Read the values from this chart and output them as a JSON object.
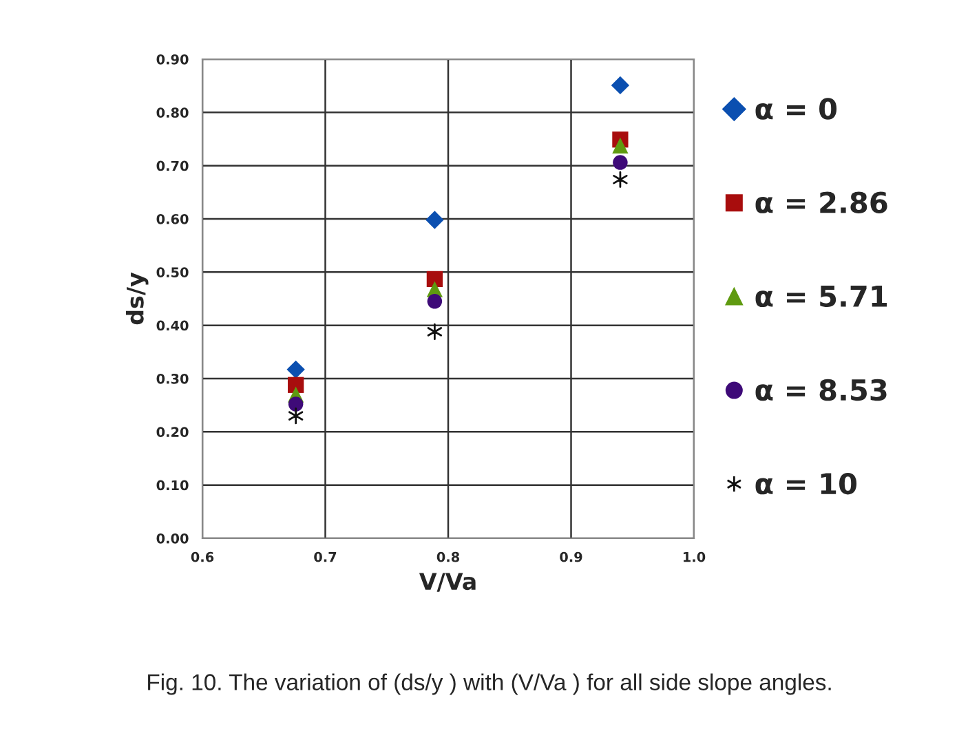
{
  "chart_data": {
    "type": "scatter",
    "xlabel": "V/Va",
    "ylabel": "ds/y",
    "xlim": [
      0.6,
      1.0
    ],
    "xticks": [
      {
        "value": 0.6,
        "label": "0.6"
      },
      {
        "value": 0.7,
        "label": "0.7"
      },
      {
        "value": 0.8,
        "label": "0.8"
      },
      {
        "value": 0.9,
        "label": "0.9"
      },
      {
        "value": 1.0,
        "label": "1.0"
      }
    ],
    "ylim": [
      0,
      0.9
    ],
    "yticks": [
      {
        "value": 0,
        "label": "0.00"
      },
      {
        "value": 0.1,
        "label": "0.10"
      },
      {
        "value": 0.2,
        "label": "0.20"
      },
      {
        "value": 0.3,
        "label": "0.30"
      },
      {
        "value": 0.4,
        "label": "0.40"
      },
      {
        "value": 0.5,
        "label": "0.50"
      },
      {
        "value": 0.6,
        "label": "0.60"
      },
      {
        "value": 0.7,
        "label": "0.70"
      },
      {
        "value": 0.8,
        "label": "0.80"
      },
      {
        "value": 0.9,
        "label": "0.90"
      }
    ],
    "grid": true,
    "legend": "right",
    "x": [
      0.676,
      0.789,
      0.94
    ],
    "series": [
      {
        "name": "α = 0",
        "color": "#0b4fb0",
        "marker": "diamond",
        "values": [
          0.317,
          0.598,
          0.851
        ]
      },
      {
        "name": "α = 2.86",
        "color": "#a80d0d",
        "marker": "square",
        "values": [
          0.288,
          0.487,
          0.749
        ]
      },
      {
        "name": "α = 5.71",
        "color": "#5f9a10",
        "marker": "triangle",
        "values": [
          0.27,
          0.468,
          0.738
        ]
      },
      {
        "name": "α = 8.53",
        "color": "#3e0a78",
        "marker": "circle",
        "values": [
          0.252,
          0.445,
          0.706
        ]
      },
      {
        "name": "α = 10",
        "color": "#111111",
        "marker": "cross",
        "values": [
          0.23,
          0.388,
          0.674
        ]
      }
    ],
    "annotations": [
      "Fig. 10. The variation of (ds/y ) with (V/Va ) for all side slope angles."
    ]
  }
}
